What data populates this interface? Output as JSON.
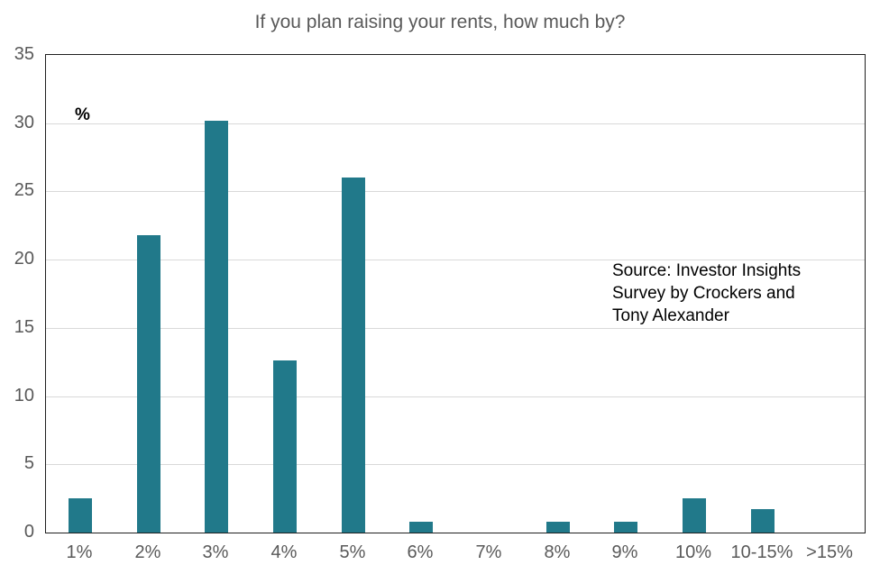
{
  "title": "If you plan raising your rents, how much by?",
  "unit_label": "%",
  "source": {
    "lines": {
      "0": "Source: Investor Insights",
      "1": "Survey by Crockers and",
      "2": "Tony Alexander"
    }
  },
  "chart_data": {
    "type": "bar",
    "title": "If you plan raising your rents, how much by?",
    "categories": [
      "1%",
      "2%",
      "3%",
      "4%",
      "5%",
      "6%",
      "7%",
      "8%",
      "9%",
      "10%",
      "10-15%",
      ">15%"
    ],
    "values": [
      2.5,
      21.8,
      30.2,
      12.6,
      26.0,
      0.8,
      0.0,
      0.8,
      0.8,
      2.5,
      1.7,
      0.0
    ],
    "xlabel": "",
    "ylabel": "%",
    "ylim": [
      0,
      35
    ],
    "yticks": [
      0,
      5,
      10,
      15,
      20,
      25,
      30,
      35
    ],
    "grid": true,
    "legend": false,
    "annotation": "Source: Investor Insights Survey by Crockers and Tony Alexander"
  },
  "colors": {
    "bar": "#21798a",
    "gridline": "#d9d9d9",
    "axis_text": "#595959",
    "title_text": "#595959",
    "source_text": "#000000",
    "plot_border": "#1f1f1f",
    "background": "#ffffff"
  }
}
